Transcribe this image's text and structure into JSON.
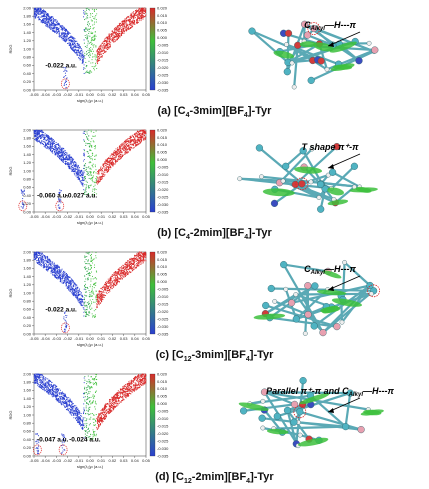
{
  "figure": {
    "panels": [
      {
        "caption_prefix": "(a) [C",
        "caption_sub1": "4",
        "caption_mid": "-3mim][BF",
        "caption_sub2": "4",
        "caption_suffix": "]-Tyr",
        "annotations": [
          "-0.022 a.u."
        ],
        "interaction_main": "C",
        "interaction_sub": "Alkyl",
        "interaction_rest": "—H---π",
        "colorbar_ticks": [
          "0.020",
          "0.015",
          "0.010",
          "0.005",
          "0.000",
          "-0.005",
          "-0.010",
          "-0.015",
          "-0.020",
          "-0.025",
          "-0.030",
          "-0.035"
        ]
      },
      {
        "caption_prefix": "(b) [C",
        "caption_sub1": "4",
        "caption_mid": "-2mim][BF",
        "caption_sub2": "4",
        "caption_suffix": "]-Tyr",
        "annotations": [
          "-0.060 a.u.",
          "-0.027 a.u."
        ],
        "interaction_main": "T shape π⁺-π",
        "colorbar_ticks": [
          "0.020",
          "0.015",
          "0.010",
          "0.005",
          "0.000",
          "-0.005",
          "-0.010",
          "-0.015",
          "-0.020",
          "-0.025",
          "-0.030",
          "-0.035"
        ]
      },
      {
        "caption_prefix": "(c) [C",
        "caption_sub1": "12",
        "caption_mid": "-3mim][BF",
        "caption_sub2": "4",
        "caption_suffix": "]-Tyr",
        "annotations": [
          "-0.022 a.u."
        ],
        "interaction_main": "C",
        "interaction_sub": "Alkyl",
        "interaction_rest": "—H---π",
        "colorbar_ticks": [
          "0.020",
          "0.015",
          "0.010",
          "0.005",
          "0.000",
          "-0.005",
          "-0.010",
          "-0.015",
          "-0.020",
          "-0.025",
          "-0.030",
          "-0.035"
        ]
      },
      {
        "caption_prefix": "(d) [C",
        "caption_sub1": "12",
        "caption_mid": "-2mim][BF",
        "caption_sub2": "4",
        "caption_suffix": "]-Tyr",
        "annotations": [
          "-0.047 a.u.",
          "-0.024 a.u."
        ],
        "interaction_main": "Parallel π⁺-π and C",
        "interaction_sub": "Alkyl",
        "interaction_rest": "—H---π",
        "colorbar_ticks": [
          "0.020",
          "0.015",
          "0.010",
          "0.005",
          "0.000",
          "-0.005",
          "-0.010",
          "-0.015",
          "-0.020",
          "-0.025",
          "-0.030",
          "-0.035"
        ]
      }
    ],
    "axis": {
      "ylabel": "RDG",
      "xlabel": "sign(λ₂)ρ (a.u.)",
      "yticks": [
        "2.00",
        "1.80",
        "1.60",
        "1.40",
        "1.20",
        "1.00",
        "0.80",
        "0.60",
        "0.40",
        "0.20",
        "0.00"
      ],
      "xticks": [
        "-0.05",
        "-0.04",
        "-0.03",
        "-0.02",
        "-0.01",
        "0.00",
        "0.01",
        "0.02",
        "0.03",
        "0.04",
        "0.05"
      ]
    }
  },
  "chart_data": [
    {
      "type": "scatter",
      "title": "",
      "xlabel": "sign(λ₂)ρ (a.u.)",
      "ylabel": "RDG",
      "xlim": [
        -0.05,
        0.05
      ],
      "ylim": [
        0,
        2.0
      ],
      "colorscale": [
        "#2233cc",
        "#22bb33",
        "#dd2222"
      ],
      "annotated_spikes": [
        -0.022
      ]
    },
    {
      "type": "scatter",
      "title": "",
      "xlabel": "sign(λ₂)ρ (a.u.)",
      "ylabel": "RDG",
      "xlim": [
        -0.05,
        0.05
      ],
      "ylim": [
        0,
        2.0
      ],
      "colorscale": [
        "#2233cc",
        "#22bb33",
        "#dd2222"
      ],
      "annotated_spikes": [
        -0.06,
        -0.027
      ]
    },
    {
      "type": "scatter",
      "title": "",
      "xlabel": "sign(λ₂)ρ (a.u.)",
      "ylabel": "RDG",
      "xlim": [
        -0.05,
        0.05
      ],
      "ylim": [
        0,
        2.0
      ],
      "colorscale": [
        "#2233cc",
        "#22bb33",
        "#dd2222"
      ],
      "annotated_spikes": [
        -0.022
      ]
    },
    {
      "type": "scatter",
      "title": "",
      "xlabel": "sign(λ₂)ρ (a.u.)",
      "ylabel": "RDG",
      "xlim": [
        -0.05,
        0.05
      ],
      "ylim": [
        0,
        2.0
      ],
      "colorscale": [
        "#2233cc",
        "#22bb33",
        "#dd2222"
      ],
      "annotated_spikes": [
        -0.047,
        -0.024
      ]
    }
  ]
}
